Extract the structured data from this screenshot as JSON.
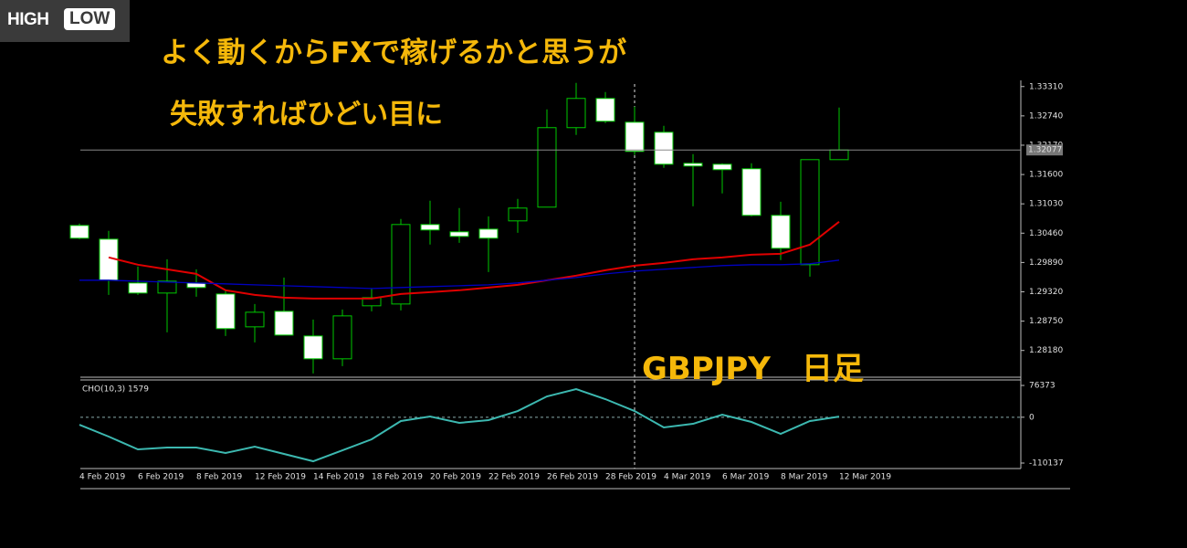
{
  "logo": {
    "left": "HIGH",
    "right": "LOW"
  },
  "headline": [
    "よく動くからFXで稼げるかと思うが",
    "失敗すればひどい目に"
  ],
  "chart_data": [
    {
      "type": "candlestick",
      "annotation": "GBPJPY　日足",
      "categories": [
        "4 Feb 2019",
        null,
        "6 Feb 2019",
        null,
        "8 Feb 2019",
        null,
        "12 Feb 2019",
        null,
        "14 Feb 2019",
        null,
        "18 Feb 2019",
        null,
        "20 Feb 2019",
        null,
        "22 Feb 2019",
        null,
        "26 Feb 2019",
        null,
        "28 Feb 2019",
        null,
        "4 Mar 2019",
        null,
        "6 Mar 2019",
        null,
        "8 Mar 2019",
        null,
        "12 Mar 2019"
      ],
      "open": [
        1.3061,
        1.30344,
        1.29492,
        1.29296,
        1.29492,
        1.29278,
        1.28639,
        1.28941,
        1.28462,
        1.28018,
        1.29048,
        1.29083,
        1.30628,
        1.30486,
        1.30539,
        1.30699,
        1.30966,
        1.32511,
        1.33079,
        1.32617,
        1.32422,
        1.31818,
        1.318,
        1.31712,
        1.30806,
        1.29847,
        1.31889
      ],
      "high": [
        1.30646,
        1.30504,
        1.29811,
        1.29953,
        1.29758,
        1.2935,
        1.29083,
        1.29598,
        1.28781,
        1.28977,
        1.29385,
        1.30735,
        1.3109,
        1.30948,
        1.30788,
        1.31126,
        1.32866,
        1.33381,
        1.33203,
        1.32919,
        1.32546,
        1.31996,
        1.31818,
        1.31818,
        1.31072,
        1.31889,
        1.32902
      ],
      "low": [
        1.30344,
        1.29261,
        1.29261,
        1.28533,
        1.29225,
        1.28462,
        1.28337,
        1.28479,
        1.27733,
        1.27875,
        1.28941,
        1.28959,
        1.30238,
        1.30273,
        1.29705,
        1.30468,
        1.30966,
        1.32369,
        1.326,
        1.31978,
        1.31729,
        1.30983,
        1.31232,
        1.30788,
        1.29936,
        1.29616,
        1.31889
      ],
      "close": [
        1.30362,
        1.29545,
        1.29296,
        1.29527,
        1.29403,
        1.28604,
        1.28923,
        1.28479,
        1.28018,
        1.28852,
        1.29207,
        1.30628,
        1.30522,
        1.30397,
        1.30362,
        1.30948,
        1.32511,
        1.33079,
        1.32635,
        1.32049,
        1.318,
        1.31765,
        1.31694,
        1.30806,
        1.30166,
        1.31889,
        1.32077
      ],
      "up_color": "#00c800",
      "down_color": "#ffffff",
      "series": [
        {
          "color": "#e00000",
          "values": [
            null,
            1.29989,
            1.29847,
            1.29758,
            1.29669,
            1.2935,
            1.29261,
            1.29207,
            1.2919,
            1.2919,
            1.2919,
            1.29278,
            1.29314,
            1.2935,
            1.29403,
            1.29456,
            1.29545,
            1.29634,
            1.2974,
            1.29829,
            1.29882,
            1.29953,
            1.29989,
            1.30042,
            1.3006,
            1.30238,
            1.30682
          ]
        },
        {
          "color": "#0000c0",
          "values": [
            1.29545,
            1.29545,
            1.29527,
            1.29509,
            1.29492,
            1.29474,
            1.29456,
            1.29438,
            1.29421,
            1.29403,
            1.29385,
            1.29403,
            1.29421,
            1.29438,
            1.29456,
            1.29492,
            1.29545,
            1.29598,
            1.29669,
            1.29722,
            1.29758,
            1.29794,
            1.29829,
            1.29847,
            1.29847,
            1.29865,
            1.29936
          ]
        }
      ],
      "current_price": {
        "value": 1.32077,
        "label": "1.32077"
      },
      "ylim": [
        1.2766,
        1.3343
      ],
      "yticks": [
        {
          "value": 1.3331,
          "label": "1.33310"
        },
        {
          "value": 1.3274,
          "label": "1.32740"
        },
        {
          "value": 1.3217,
          "label": "1.32170"
        },
        {
          "value": 1.316,
          "label": "1.31600"
        },
        {
          "value": 1.3103,
          "label": "1.31030"
        },
        {
          "value": 1.3046,
          "label": "1.30460"
        },
        {
          "value": 1.2989,
          "label": "1.29890"
        },
        {
          "value": 1.2932,
          "label": "1.29320"
        },
        {
          "value": 1.2875,
          "label": "1.28750"
        },
        {
          "value": 1.2818,
          "label": "1.28180"
        }
      ]
    },
    {
      "type": "line",
      "title": "CHO(10,3) 1579",
      "series": [
        {
          "color": "#3cb8b0",
          "values": [
            -18000,
            -46500,
            -77300,
            -72900,
            -72900,
            -86000,
            -70700,
            -88200,
            -105800,
            -79500,
            -53100,
            -9200,
            1800,
            -13600,
            -7000,
            14900,
            50000,
            67600,
            43500,
            14900,
            -24600,
            -15800,
            6100,
            -11400,
            -39900,
            -9200,
            1579
          ]
        }
      ],
      "ylim": [
        -123300,
        85200
      ],
      "yticks": [
        76373,
        0,
        -110137
      ]
    }
  ]
}
